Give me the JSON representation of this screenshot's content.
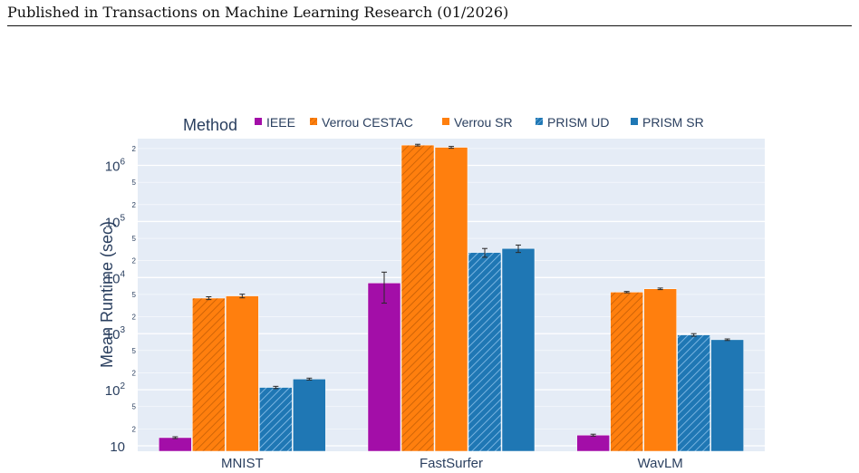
{
  "page": {
    "header": "Published in Transactions on Machine Learning Research (01/2026)"
  },
  "chart_data": {
    "type": "bar",
    "ylabel": "Mean Runtime (sec)",
    "xlabel": "",
    "y_scale": "log",
    "ylim": [
      8,
      3000000
    ],
    "legend_title": "Method",
    "legend_position": "top",
    "grid": true,
    "categories": [
      "MNIST",
      "FastSurfer",
      "WavLM"
    ],
    "series": [
      {
        "name": "IEEE",
        "color": "#a30ea8",
        "hatched": false,
        "values": [
          14,
          8000,
          15.5
        ],
        "errors": [
          0.5,
          4500,
          0.6
        ]
      },
      {
        "name": "Verrou CESTAC",
        "color": "#ff7f0e",
        "hatched": true,
        "values": [
          4300,
          2300000,
          5500
        ],
        "errors": [
          250,
          80000,
          150
        ]
      },
      {
        "name": "Verrou SR",
        "color": "#ff7f0e",
        "hatched": false,
        "values": [
          4700,
          2100000,
          6300
        ],
        "errors": [
          350,
          80000,
          200
        ]
      },
      {
        "name": "PRISM UD",
        "color": "#1f77b4",
        "hatched": true,
        "values": [
          110,
          28000,
          950
        ],
        "errors": [
          5,
          5000,
          50
        ]
      },
      {
        "name": "PRISM SR",
        "color": "#1f77b4",
        "hatched": false,
        "values": [
          155,
          33000,
          780
        ],
        "errors": [
          6,
          5000,
          25
        ]
      }
    ],
    "y_major_ticks": [
      {
        "value": 10,
        "base": "10",
        "exp": ""
      },
      {
        "value": 100,
        "base": "10",
        "exp": "2"
      },
      {
        "value": 1000,
        "base": "10",
        "exp": "3"
      },
      {
        "value": 10000,
        "base": "10",
        "exp": "4"
      },
      {
        "value": 100000,
        "base": "10",
        "exp": "5"
      },
      {
        "value": 1000000,
        "base": "10",
        "exp": "6"
      }
    ],
    "y_minor_ticks": [
      {
        "value": 20,
        "label": "2"
      },
      {
        "value": 50,
        "label": "5"
      },
      {
        "value": 200,
        "label": "2"
      },
      {
        "value": 500,
        "label": "5"
      },
      {
        "value": 2000,
        "label": "2"
      },
      {
        "value": 5000,
        "label": "5"
      },
      {
        "value": 20000,
        "label": "2"
      },
      {
        "value": 50000,
        "label": "5"
      },
      {
        "value": 200000,
        "label": "2"
      },
      {
        "value": 500000,
        "label": "5"
      },
      {
        "value": 2000000,
        "label": "2"
      }
    ]
  }
}
